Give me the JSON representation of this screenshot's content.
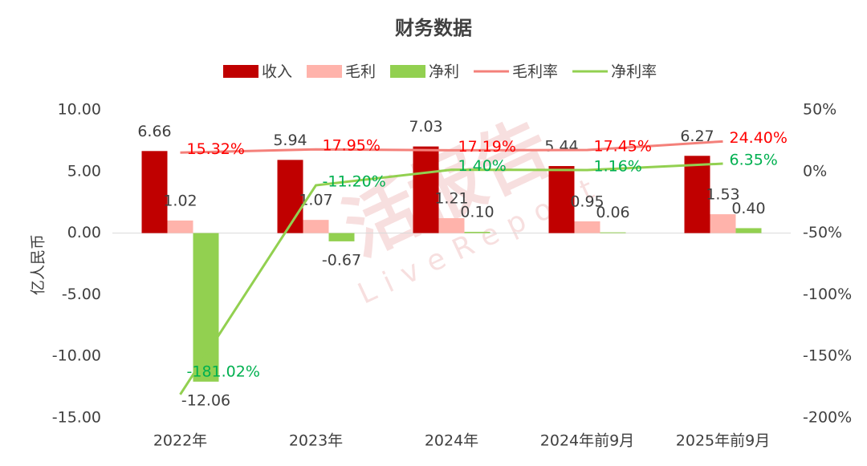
{
  "chart_data": {
    "type": "bar-line",
    "title": "财务数据",
    "y_label": "亿人民币",
    "watermark": [
      "活报告",
      "LiveReport"
    ],
    "categories": [
      "2022年",
      "2023年",
      "2024年",
      "2024年前9月",
      "2025年前9月"
    ],
    "series": [
      {
        "name": "收入",
        "kind": "bar",
        "color": "#c00000",
        "values": [
          6.66,
          5.94,
          7.03,
          5.44,
          6.27
        ],
        "value_labels": [
          "6.66",
          "5.94",
          "7.03",
          "5.44",
          "6.27"
        ]
      },
      {
        "name": "毛利",
        "kind": "bar",
        "color": "#ffb3ab",
        "values": [
          1.02,
          1.07,
          1.21,
          0.95,
          1.53
        ],
        "value_labels": [
          "1.02",
          "1.07",
          "1.21",
          "0.95",
          "1.53"
        ]
      },
      {
        "name": "净利",
        "kind": "bar",
        "color": "#92d050",
        "values": [
          -12.06,
          -0.67,
          0.1,
          0.06,
          0.4
        ],
        "value_labels": [
          "-12.06",
          "-0.67",
          "0.10",
          "0.06",
          "0.40"
        ]
      },
      {
        "name": "毛利率",
        "kind": "line",
        "axis": "y2",
        "color": "#f4807a",
        "label_color": "#ff0000",
        "values": [
          15.32,
          17.95,
          17.19,
          17.45,
          24.4
        ],
        "value_labels": [
          "15.32%",
          "17.95%",
          "17.19%",
          "17.45%",
          "24.40%"
        ]
      },
      {
        "name": "净利率",
        "kind": "line",
        "axis": "y2",
        "color": "#92d050",
        "label_color": "#00b050",
        "values": [
          -181.02,
          -11.2,
          1.4,
          1.16,
          6.35
        ],
        "value_labels": [
          "-181.02%",
          "-11.20%",
          "1.40%",
          "1.16%",
          "6.35%"
        ]
      }
    ],
    "ylim": [
      -15,
      10
    ],
    "yticks": [
      {
        "value": -15,
        "label": "-15.00"
      },
      {
        "value": -10,
        "label": "-10.00"
      },
      {
        "value": -5,
        "label": "-5.00"
      },
      {
        "value": 0,
        "label": "0.00"
      },
      {
        "value": 5,
        "label": "5.00"
      },
      {
        "value": 10,
        "label": "10.00"
      }
    ],
    "y2lim": [
      -200,
      50
    ],
    "y2ticks": [
      {
        "value": -200,
        "label": "-200%"
      },
      {
        "value": -150,
        "label": "-150%"
      },
      {
        "value": -100,
        "label": "-100%"
      },
      {
        "value": -50,
        "label": "-50%"
      },
      {
        "value": 0,
        "label": "0%"
      },
      {
        "value": 50,
        "label": "50%"
      }
    ]
  }
}
